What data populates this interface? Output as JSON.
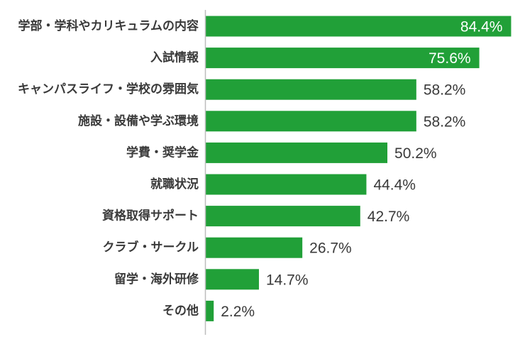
{
  "chart_data": {
    "type": "bar",
    "orientation": "horizontal",
    "categories": [
      "学部・学科やカリキュラムの内容",
      "入試情報",
      "キャンパスライフ・学校の雰囲気",
      "施設・設備や学ぶ環境",
      "学費・奨学金",
      "就職状況",
      "資格取得サポート",
      "クラブ・サークル",
      "留学・海外研修",
      "その他"
    ],
    "values": [
      84.4,
      75.6,
      58.2,
      58.2,
      50.2,
      44.4,
      42.7,
      26.7,
      14.7,
      2.2
    ],
    "value_labels": [
      "84.4%",
      "75.6%",
      "58.2%",
      "58.2%",
      "50.2%",
      "44.4%",
      "42.7%",
      "26.7%",
      "14.7%",
      "2.2%"
    ],
    "xlim": [
      0,
      100
    ],
    "bar_color": "#21a038",
    "grid": false,
    "title": "",
    "xlabel": "",
    "ylabel": ""
  }
}
